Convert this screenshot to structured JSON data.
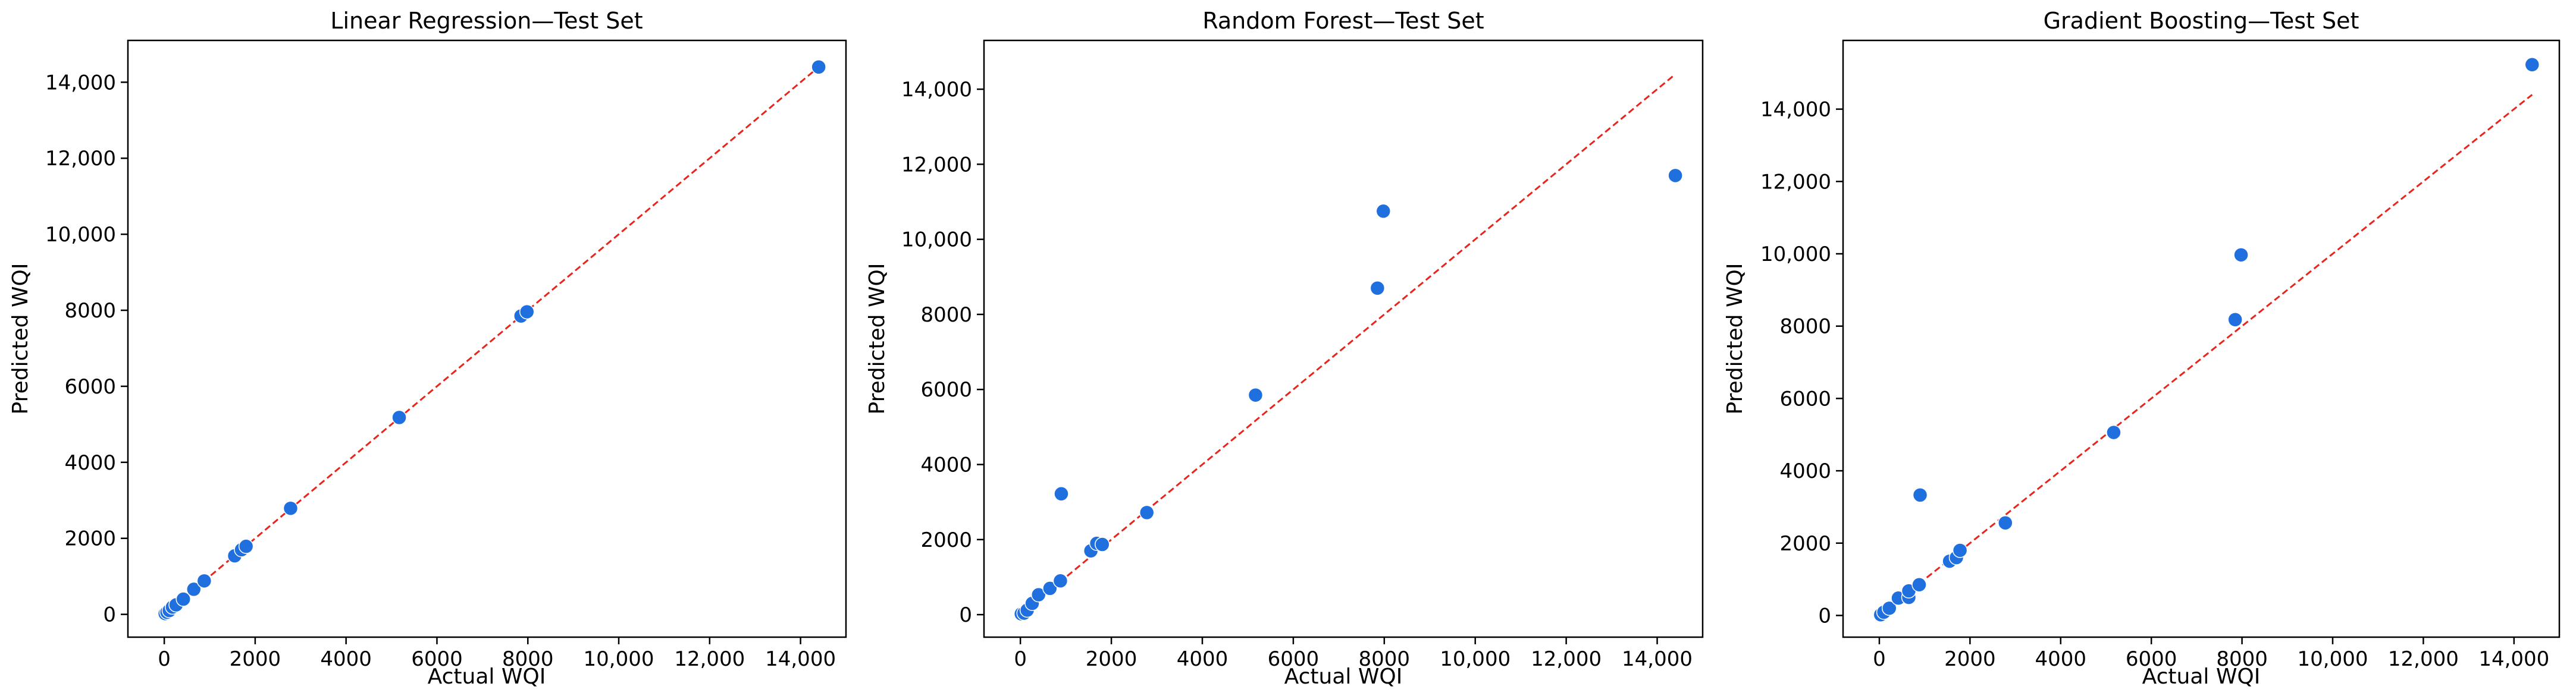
{
  "colors": {
    "point": "#1f6fde",
    "point_edge": "#ffffff",
    "diagonal": "#e8241c",
    "axes": "#000000"
  },
  "chart_data": [
    {
      "type": "scatter",
      "title": "Linear Regression—Test Set",
      "xlabel": "Actual WQI",
      "ylabel": "Predicted WQI",
      "xlim": [
        -800,
        15000
      ],
      "ylim": [
        -600,
        15100
      ],
      "xticks": [
        0,
        2000,
        4000,
        6000,
        8000,
        10000,
        12000,
        14000
      ],
      "xtick_labels": [
        "0",
        "2000",
        "4000",
        "6000",
        "8000",
        "10,000",
        "12,000",
        "14,000"
      ],
      "yticks": [
        0,
        2000,
        4000,
        6000,
        8000,
        10000,
        12000,
        14000
      ],
      "ytick_labels": [
        "0",
        "2000",
        "4000",
        "6000",
        "8000",
        "10,000",
        "12,000",
        "14,000"
      ],
      "grid": false,
      "reference_line": {
        "from": [
          0,
          0
        ],
        "to": [
          14400,
          14400
        ],
        "style": "dashed"
      },
      "points": [
        {
          "x": 20,
          "y": 20
        },
        {
          "x": 60,
          "y": 55
        },
        {
          "x": 110,
          "y": 100
        },
        {
          "x": 180,
          "y": 190
        },
        {
          "x": 260,
          "y": 250
        },
        {
          "x": 420,
          "y": 400
        },
        {
          "x": 650,
          "y": 660
        },
        {
          "x": 880,
          "y": 880
        },
        {
          "x": 1550,
          "y": 1540
        },
        {
          "x": 1700,
          "y": 1700
        },
        {
          "x": 1800,
          "y": 1790
        },
        {
          "x": 2780,
          "y": 2790
        },
        {
          "x": 5170,
          "y": 5180
        },
        {
          "x": 7850,
          "y": 7850
        },
        {
          "x": 7980,
          "y": 7960
        },
        {
          "x": 14400,
          "y": 14400
        }
      ]
    },
    {
      "type": "scatter",
      "title": "Random Forest—Test Set",
      "xlabel": "Actual WQI",
      "ylabel": "Predicted WQI",
      "xlim": [
        -800,
        15000
      ],
      "ylim": [
        -600,
        15300
      ],
      "xticks": [
        0,
        2000,
        4000,
        6000,
        8000,
        10000,
        12000,
        14000
      ],
      "xtick_labels": [
        "0",
        "2000",
        "4000",
        "6000",
        "8000",
        "10,000",
        "12,000",
        "14,000"
      ],
      "yticks": [
        0,
        2000,
        4000,
        6000,
        8000,
        10000,
        12000,
        14000
      ],
      "ytick_labels": [
        "0",
        "2000",
        "4000",
        "6000",
        "8000",
        "10,000",
        "12,000",
        "14,000"
      ],
      "grid": false,
      "reference_line": {
        "from": [
          0,
          0
        ],
        "to": [
          14400,
          14400
        ],
        "style": "dashed"
      },
      "points": [
        {
          "x": 20,
          "y": 20
        },
        {
          "x": 80,
          "y": 40
        },
        {
          "x": 150,
          "y": 120
        },
        {
          "x": 260,
          "y": 300
        },
        {
          "x": 400,
          "y": 530
        },
        {
          "x": 650,
          "y": 700
        },
        {
          "x": 880,
          "y": 900
        },
        {
          "x": 900,
          "y": 3220
        },
        {
          "x": 1550,
          "y": 1700
        },
        {
          "x": 1680,
          "y": 1900
        },
        {
          "x": 1800,
          "y": 1870
        },
        {
          "x": 2780,
          "y": 2720
        },
        {
          "x": 5170,
          "y": 5850
        },
        {
          "x": 7850,
          "y": 8700
        },
        {
          "x": 7980,
          "y": 10750
        },
        {
          "x": 14400,
          "y": 11700
        }
      ]
    },
    {
      "type": "scatter",
      "title": "Gradient Boosting—Test Set",
      "xlabel": "Actual WQI",
      "ylabel": "Predicted WQI",
      "xlim": [
        -800,
        15000
      ],
      "ylim": [
        -600,
        15900
      ],
      "xticks": [
        0,
        2000,
        4000,
        6000,
        8000,
        10000,
        12000,
        14000
      ],
      "xtick_labels": [
        "0",
        "2000",
        "4000",
        "6000",
        "8000",
        "10,000",
        "12,000",
        "14,000"
      ],
      "yticks": [
        0,
        2000,
        4000,
        6000,
        8000,
        10000,
        12000,
        14000
      ],
      "ytick_labels": [
        "0",
        "2000",
        "4000",
        "6000",
        "8000",
        "10,000",
        "12,000",
        "14,000"
      ],
      "grid": false,
      "reference_line": {
        "from": [
          0,
          0
        ],
        "to": [
          14400,
          14400
        ],
        "style": "dashed"
      },
      "points": [
        {
          "x": 30,
          "y": 20
        },
        {
          "x": 100,
          "y": 90
        },
        {
          "x": 220,
          "y": 200
        },
        {
          "x": 420,
          "y": 480
        },
        {
          "x": 650,
          "y": 500
        },
        {
          "x": 650,
          "y": 680
        },
        {
          "x": 880,
          "y": 850
        },
        {
          "x": 900,
          "y": 3330
        },
        {
          "x": 1550,
          "y": 1500
        },
        {
          "x": 1700,
          "y": 1600
        },
        {
          "x": 1780,
          "y": 1800
        },
        {
          "x": 2780,
          "y": 2560
        },
        {
          "x": 5170,
          "y": 5060
        },
        {
          "x": 7850,
          "y": 8180
        },
        {
          "x": 7980,
          "y": 9970
        },
        {
          "x": 14400,
          "y": 15230
        }
      ]
    }
  ]
}
